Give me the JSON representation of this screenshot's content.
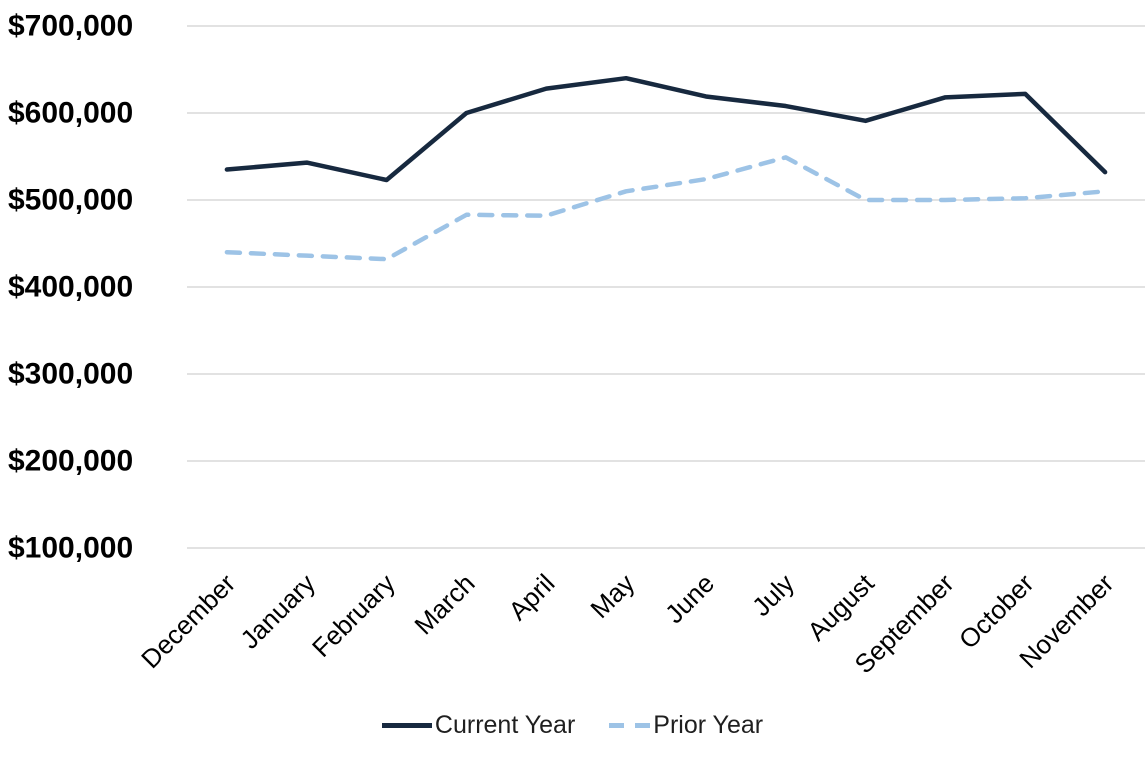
{
  "chart_data": {
    "type": "line",
    "title": "",
    "xlabel": "",
    "ylabel": "",
    "categories": [
      "December",
      "January",
      "February",
      "March",
      "April",
      "May",
      "June",
      "July",
      "August",
      "September",
      "October",
      "November"
    ],
    "series": [
      {
        "name": "Current Year",
        "style": "solid",
        "color": "#17293f",
        "values": [
          535000,
          543000,
          523000,
          600000,
          628000,
          640000,
          619000,
          608000,
          591000,
          618000,
          622000,
          532000
        ]
      },
      {
        "name": "Prior Year",
        "style": "dashed",
        "color": "#9dc3e6",
        "values": [
          440000,
          436000,
          432000,
          483000,
          482000,
          510000,
          524000,
          549000,
          500000,
          500000,
          502000,
          510000
        ]
      }
    ],
    "ylim": [
      100000,
      700000
    ],
    "ytick_interval": 100000,
    "yticks": [
      {
        "value": 700000,
        "label": "$700,000"
      },
      {
        "value": 600000,
        "label": "$600,000"
      },
      {
        "value": 500000,
        "label": "$500,000"
      },
      {
        "value": 400000,
        "label": "$400,000"
      },
      {
        "value": 300000,
        "label": "$300,000"
      },
      {
        "value": 200000,
        "label": "$200,000"
      },
      {
        "value": 100000,
        "label": "$100,000"
      }
    ],
    "grid": true,
    "gridline_color": "#d9d9d9",
    "background": "#ffffff",
    "legend_position": "bottom",
    "x_label_rotation_deg": 45
  }
}
